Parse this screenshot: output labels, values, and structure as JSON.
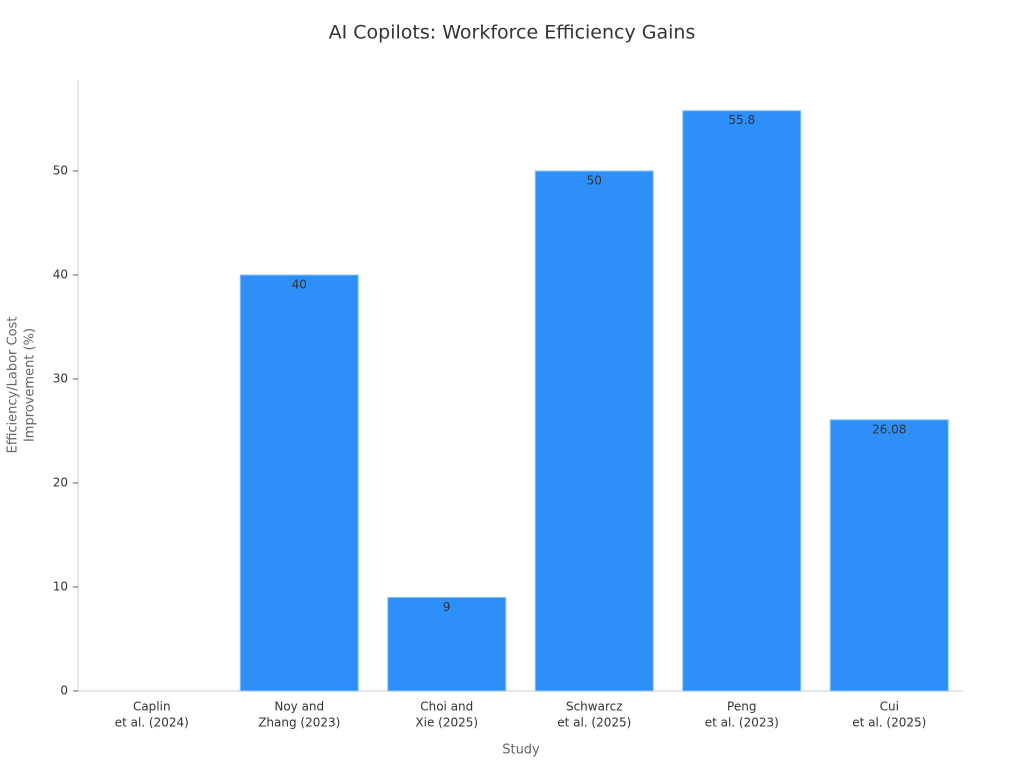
{
  "chart_data": {
    "type": "bar",
    "title": "AI Copilots: Workforce Efficiency Gains",
    "xlabel": "Study",
    "ylabel": [
      "Efficiency/Labor Cost",
      "Improvement (%)"
    ],
    "categories": [
      [
        "Caplin",
        "et al. (2024)"
      ],
      [
        "Noy and",
        "Zhang (2023)"
      ],
      [
        "Choi and",
        "Xie (2025)"
      ],
      [
        "Schwarcz",
        "et al. (2025)"
      ],
      [
        "Peng",
        "et al. (2023)"
      ],
      [
        "Cui",
        "et al. (2025)"
      ]
    ],
    "values": [
      null,
      40,
      9,
      50,
      55.8,
      26.08
    ],
    "color": "#2f8ff8",
    "ylim": [
      0,
      58.75
    ],
    "yticks": [
      0,
      10,
      20,
      30,
      40,
      50
    ],
    "grid": false
  }
}
